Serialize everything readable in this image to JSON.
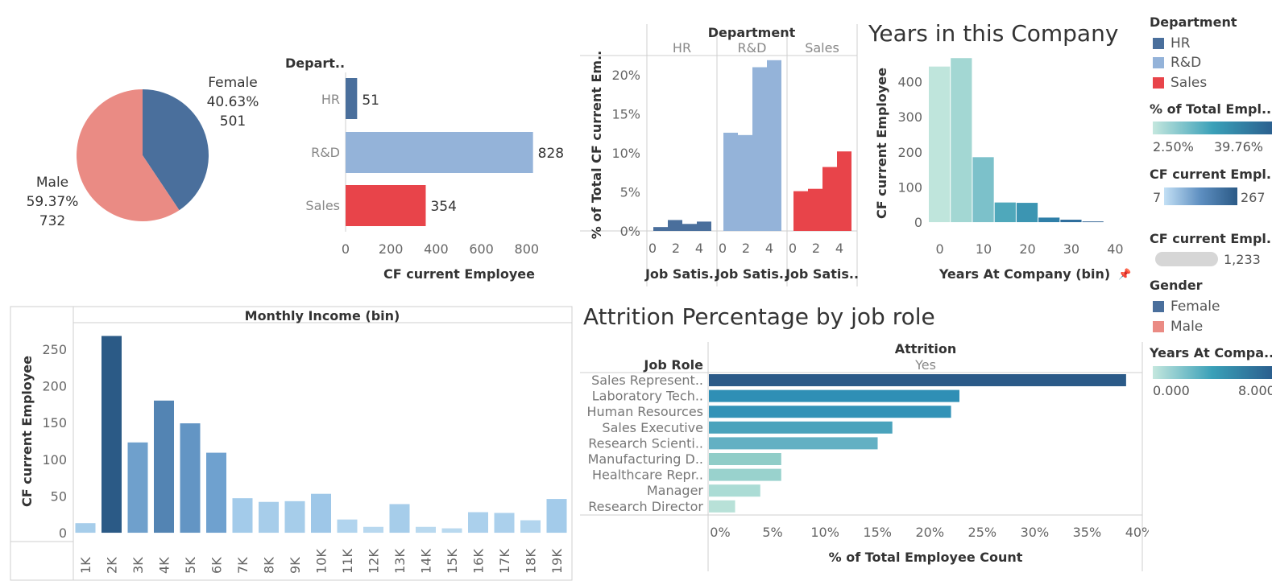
{
  "chart_data": [
    {
      "type": "pie",
      "slices": [
        {
          "name": "Female",
          "percent": "40.63%",
          "value": 501,
          "share": 40.63,
          "color": "#4a6f9c"
        },
        {
          "name": "Male",
          "percent": "59.37%",
          "value": 732,
          "share": 59.37,
          "color": "#ea8b84"
        }
      ]
    },
    {
      "type": "bar",
      "orientation": "horizontal",
      "header": "Depart..",
      "categories": [
        "HR",
        "R&D",
        "Sales"
      ],
      "values": [
        51,
        828,
        354
      ],
      "value_labels": [
        "51",
        "828",
        "354"
      ],
      "colors": [
        "#4a6f9c",
        "#94b3d9",
        "#e8444a"
      ],
      "xlabel": "CF current Employee",
      "xticks": [
        "0",
        "200",
        "400",
        "600",
        "800"
      ],
      "xlim": [
        0,
        1000
      ]
    },
    {
      "type": "bar",
      "title": "Department",
      "panels": [
        {
          "name": "HR",
          "color": "#4a6f9c",
          "x": [
            1,
            2,
            3,
            4
          ],
          "values": [
            0.5,
            1.4,
            0.9,
            1.2
          ],
          "xlabel": "Job Satis.."
        },
        {
          "name": "R&D",
          "color": "#94b3d9",
          "x": [
            1,
            2,
            3,
            4
          ],
          "values": [
            12.6,
            12.3,
            21.0,
            21.9
          ],
          "xlabel": "Job Satis.."
        },
        {
          "name": "Sales",
          "color": "#e8444a",
          "x": [
            1,
            2,
            3,
            4
          ],
          "values": [
            5.1,
            5.4,
            8.2,
            10.2
          ],
          "xlabel": "Job Satis.."
        }
      ],
      "ylabel": "% of Total CF current Em..",
      "yticks": [
        "0%",
        "5%",
        "10%",
        "15%",
        "20%"
      ],
      "xticks": [
        "0",
        "2",
        "4"
      ],
      "ylim": [
        0,
        22.5
      ]
    },
    {
      "type": "bar",
      "title": "Years in this Company",
      "bins": [
        0,
        5,
        10,
        15,
        20,
        25,
        30,
        35
      ],
      "values": [
        443,
        467,
        185,
        56,
        55,
        13,
        7,
        2
      ],
      "colors": [
        "#bfe5dc",
        "#a3d7d3",
        "#7cc1ca",
        "#4fa8bb",
        "#3c95b2",
        "#2f7fa8",
        "#2d6d9c",
        "#2b5f90"
      ],
      "xlabel": "Years At Company (bin)",
      "ylabel": "CF current Employee",
      "xticks": [
        "0",
        "10",
        "20",
        "30",
        "40"
      ],
      "yticks": [
        "0",
        "100",
        "200",
        "300",
        "400"
      ],
      "xlim": [
        -2.5,
        42.5
      ],
      "ylim": [
        -25,
        495
      ]
    },
    {
      "type": "bar",
      "header": "Monthly Income (bin)",
      "categories": [
        "1K",
        "2K",
        "3K",
        "4K",
        "5K",
        "6K",
        "7K",
        "8K",
        "9K",
        "10K",
        "11K",
        "12K",
        "13K",
        "14K",
        "15K",
        "16K",
        "17K",
        "18K",
        "19K"
      ],
      "values": [
        13,
        268,
        123,
        180,
        149,
        109,
        47,
        42,
        43,
        53,
        18,
        8,
        39,
        8,
        6,
        28,
        27,
        17,
        46
      ],
      "colors": [
        "#a6cdea",
        "#2b5a86",
        "#6fa0cc",
        "#5384b3",
        "#6395c4",
        "#6fa1cf",
        "#a3cbea",
        "#a7cdea",
        "#a6cdea",
        "#9ec7e8",
        "#b1d4ee",
        "#b8d8ef",
        "#a6cdea",
        "#b9d9ef",
        "#b9d9ef",
        "#abd0ec",
        "#abd0ec",
        "#b2d5ee",
        "#a3cbea"
      ],
      "ylabel": "CF current Employee",
      "yticks": [
        "0",
        "50",
        "100",
        "150",
        "200",
        "250"
      ],
      "ylim": [
        -12,
        285
      ]
    },
    {
      "type": "bar",
      "orientation": "horizontal",
      "title": "Attrition Percentage by job role",
      "header": "Attrition",
      "subheader": "Yes",
      "row_header": "Job Role",
      "categories": [
        "Sales Represent..",
        "Laboratory Tech..",
        "Human Resources",
        "Sales Executive",
        "Research Scienti..",
        "Manufacturing D..",
        "Healthcare Repr..",
        "Manager",
        "Research Director"
      ],
      "values": [
        39.8,
        23.9,
        23.1,
        17.5,
        16.1,
        6.9,
        6.9,
        4.9,
        2.5
      ],
      "colors": [
        "#2b5a88",
        "#2f8fb5",
        "#3393b7",
        "#4aa3bc",
        "#63b0c3",
        "#90cdc8",
        "#99d2cd",
        "#abdcd5",
        "#b8e1d8"
      ],
      "xlabel": "% of Total Employee Count",
      "xticks": [
        "0%",
        "5%",
        "10%",
        "15%",
        "20%",
        "25%",
        "30%",
        "35%",
        "40%"
      ],
      "xlim": [
        0,
        41.5
      ]
    }
  ],
  "legend": {
    "department": {
      "title": "Department",
      "items": [
        {
          "label": "HR",
          "color": "#4a6f9c"
        },
        {
          "label": "R&D",
          "color": "#94b3d9"
        },
        {
          "label": "Sales",
          "color": "#e8444a"
        }
      ]
    },
    "pct_total": {
      "title": "% of Total Empl..",
      "min": "2.50%",
      "max": "39.76%"
    },
    "cf_employee": {
      "title": "CF current Empl..",
      "min": "7",
      "max": "267"
    },
    "cf_employee_size": {
      "title": "CF current Empl..",
      "value": "1,233"
    },
    "gender": {
      "title": "Gender",
      "items": [
        {
          "label": "Female",
          "color": "#4a6f9c"
        },
        {
          "label": "Male",
          "color": "#ea8b84"
        }
      ]
    },
    "years": {
      "title": "Years At Compa..",
      "min": "0.000",
      "max": "8.000"
    }
  }
}
